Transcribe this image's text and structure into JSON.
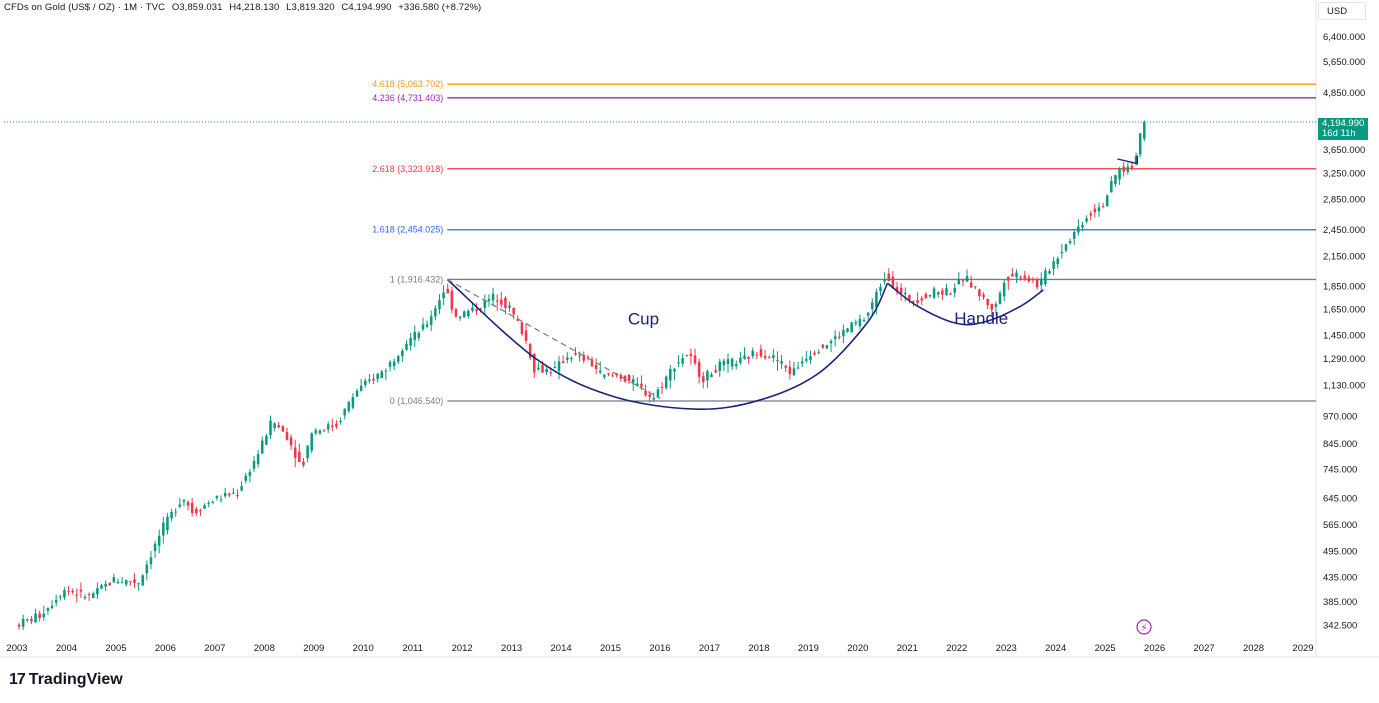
{
  "header": {
    "symbol": "CFDs on Gold (US$ / OZ) · 1M · TVC",
    "open": "O3,859.031",
    "high": "H4,218.130",
    "low": "L3,819.320",
    "close": "C4,194.990",
    "change": "+336.580 (+8.72%)"
  },
  "currency": "USD",
  "price_tag": {
    "price": "4,194.990",
    "countdown": "16d 11h"
  },
  "brand": "TradingView",
  "colors": {
    "up": "#089981",
    "down": "#f23645",
    "fib_4618": "#ff9800",
    "fib_4236": "#9c27b0",
    "fib_2618": "#f23645",
    "fib_1618": "#2962ff",
    "fib_1": "#787b86",
    "fib_0": "#787b86",
    "annotation": "#1a237e"
  },
  "chart_data": {
    "type": "candlestick",
    "scale": "log",
    "x_ticks": [
      "2003",
      "2004",
      "2005",
      "2006",
      "2007",
      "2008",
      "2009",
      "2010",
      "2011",
      "2012",
      "2013",
      "2014",
      "2015",
      "2016",
      "2017",
      "2018",
      "2019",
      "2020",
      "2021",
      "2022",
      "2023",
      "2024",
      "2025",
      "2026",
      "2027",
      "2028",
      "2029"
    ],
    "y_ticks": [
      "6,400.000",
      "5,650.000",
      "4,850.000",
      "3,650.000",
      "3,250.000",
      "2,850.000",
      "2,450.000",
      "2,150.000",
      "1,850.000",
      "1,650.000",
      "1,450.000",
      "1,290.000",
      "1,130.000",
      "970.000",
      "845.000",
      "745.000",
      "645.000",
      "565.000",
      "495.000",
      "435.000",
      "385.000",
      "342.500"
    ],
    "ylim": [
      325,
      6900
    ],
    "fib_levels": [
      {
        "label": "4.618 (5,063.702)",
        "value": 5063.702,
        "color": "#ff9800"
      },
      {
        "label": "4.236 (4,731.403)",
        "value": 4731.403,
        "color": "#9c27b0"
      },
      {
        "label": "2.618 (3,323.918)",
        "value": 3323.918,
        "color": "#f23645"
      },
      {
        "label": "1.618 (2,454.025)",
        "value": 2454.025,
        "color": "#2962ff"
      },
      {
        "label": "1 (1,916.432)",
        "value": 1916.432,
        "color": "#787b86"
      },
      {
        "label": "0 (1,046.540)",
        "value": 1046.54,
        "color": "#787b86"
      }
    ],
    "last_price": 4194.99,
    "annotations": [
      {
        "text": "Cup",
        "x": 2015.35,
        "y": 1530
      },
      {
        "text": "Handle",
        "x": 2021.95,
        "y": 1535
      }
    ],
    "cup_path": [
      [
        2011.7,
        1916
      ],
      [
        2013.5,
        1290
      ],
      [
        2015.0,
        1075
      ],
      [
        2016.7,
        1005
      ],
      [
        2018.0,
        1050
      ],
      [
        2019.2,
        1200
      ],
      [
        2020.2,
        1550
      ],
      [
        2020.6,
        1880
      ]
    ],
    "handle_path": [
      [
        2020.6,
        1880
      ],
      [
        2021.2,
        1680
      ],
      [
        2022.0,
        1540
      ],
      [
        2022.6,
        1555
      ],
      [
        2023.3,
        1680
      ],
      [
        2023.75,
        1820
      ]
    ],
    "trendline": [
      [
        2011.7,
        1916
      ],
      [
        2016.0,
        1060
      ]
    ],
    "flag_path": [
      [
        2025.25,
        3490
      ],
      [
        2025.65,
        3410
      ],
      [
        2025.65,
        3550
      ]
    ],
    "price_path": [
      [
        2003.0,
        343
      ],
      [
        2003.5,
        360
      ],
      [
        2004.0,
        410
      ],
      [
        2004.5,
        395
      ],
      [
        2005.0,
        430
      ],
      [
        2005.5,
        425
      ],
      [
        2006.0,
        560
      ],
      [
        2006.4,
        650
      ],
      [
        2006.6,
        600
      ],
      [
        2007.0,
        640
      ],
      [
        2007.5,
        665
      ],
      [
        2007.9,
        800
      ],
      [
        2008.2,
        950
      ],
      [
        2008.5,
        880
      ],
      [
        2008.8,
        750
      ],
      [
        2009.0,
        900
      ],
      [
        2009.5,
        930
      ],
      [
        2009.9,
        1100
      ],
      [
        2010.5,
        1230
      ],
      [
        2010.9,
        1400
      ],
      [
        2011.3,
        1520
      ],
      [
        2011.7,
        1840
      ],
      [
        2011.9,
        1600
      ],
      [
        2012.3,
        1650
      ],
      [
        2012.7,
        1770
      ],
      [
        2013.0,
        1660
      ],
      [
        2013.3,
        1450
      ],
      [
        2013.5,
        1230
      ],
      [
        2013.9,
        1220
      ],
      [
        2014.2,
        1320
      ],
      [
        2014.6,
        1280
      ],
      [
        2014.9,
        1180
      ],
      [
        2015.2,
        1190
      ],
      [
        2015.6,
        1130
      ],
      [
        2015.9,
        1060
      ],
      [
        2016.3,
        1240
      ],
      [
        2016.6,
        1330
      ],
      [
        2016.9,
        1170
      ],
      [
        2017.3,
        1260
      ],
      [
        2017.7,
        1280
      ],
      [
        2018.0,
        1340
      ],
      [
        2018.4,
        1290
      ],
      [
        2018.7,
        1200
      ],
      [
        2019.0,
        1310
      ],
      [
        2019.5,
        1410
      ],
      [
        2019.9,
        1520
      ],
      [
        2020.2,
        1580
      ],
      [
        2020.6,
        1970
      ],
      [
        2020.9,
        1780
      ],
      [
        2021.2,
        1730
      ],
      [
        2021.6,
        1800
      ],
      [
        2021.9,
        1810
      ],
      [
        2022.2,
        1940
      ],
      [
        2022.5,
        1780
      ],
      [
        2022.8,
        1640
      ],
      [
        2023.0,
        1920
      ],
      [
        2023.3,
        1980
      ],
      [
        2023.7,
        1860
      ],
      [
        2023.95,
        2060
      ],
      [
        2024.3,
        2330
      ],
      [
        2024.7,
        2650
      ],
      [
        2025.0,
        2800
      ],
      [
        2025.3,
        3300
      ],
      [
        2025.6,
        3350
      ],
      [
        2025.8,
        4194
      ]
    ]
  }
}
